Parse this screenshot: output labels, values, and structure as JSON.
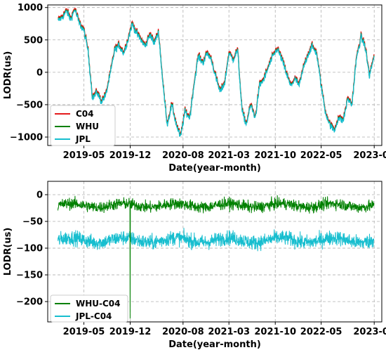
{
  "chart_data": [
    {
      "type": "line",
      "xlabel": "Date(year-month)",
      "ylabel": "LODR(us)",
      "xlim": [
        "2018-11-15",
        "2023-02-05"
      ],
      "ylim": [
        -1130,
        1040
      ],
      "grid": true,
      "legend_position": "bottom-left",
      "x_ticks": [
        "2019-05",
        "2019-12",
        "2020-08",
        "2021-03",
        "2021-10",
        "2022-05",
        "2023-01"
      ],
      "y_ticks": [
        -1000,
        -500,
        0,
        500,
        1000
      ],
      "series": [
        {
          "name": "C04",
          "color": "#e41a1c"
        },
        {
          "name": "WHU",
          "color": "#008000"
        },
        {
          "name": "JPL",
          "color": "#17becf"
        }
      ],
      "x": [
        "2019-01-01",
        "2019-01-20",
        "2019-02-10",
        "2019-03-01",
        "2019-03-20",
        "2019-04-10",
        "2019-05-01",
        "2019-05-20",
        "2019-06-10",
        "2019-07-01",
        "2019-07-20",
        "2019-08-10",
        "2019-09-01",
        "2019-09-20",
        "2019-10-10",
        "2019-11-01",
        "2019-11-20",
        "2019-12-10",
        "2020-01-01",
        "2020-01-20",
        "2020-02-10",
        "2020-03-01",
        "2020-03-20",
        "2020-04-10",
        "2020-05-01",
        "2020-05-20",
        "2020-06-10",
        "2020-07-01",
        "2020-07-20",
        "2020-08-10",
        "2020-09-01",
        "2020-09-20",
        "2020-10-10",
        "2020-11-01",
        "2020-11-20",
        "2020-12-10",
        "2021-01-01",
        "2021-01-20",
        "2021-02-10",
        "2021-03-01",
        "2021-03-20",
        "2021-04-10",
        "2021-05-01",
        "2021-05-20",
        "2021-06-10",
        "2021-07-01",
        "2021-07-20",
        "2021-08-10",
        "2021-09-01",
        "2021-09-20",
        "2021-10-10",
        "2021-11-01",
        "2021-11-20",
        "2021-12-10",
        "2022-01-01",
        "2022-01-20",
        "2022-02-10",
        "2022-03-01",
        "2022-03-20",
        "2022-04-10",
        "2022-05-01",
        "2022-05-20",
        "2022-06-10",
        "2022-07-01",
        "2022-07-20",
        "2022-08-10",
        "2022-09-01",
        "2022-09-20",
        "2022-10-10",
        "2022-11-01",
        "2022-11-20",
        "2022-12-10",
        "2022-12-31"
      ],
      "values": [
        800,
        850,
        950,
        820,
        980,
        760,
        650,
        350,
        -400,
        -300,
        -450,
        -350,
        0,
        350,
        420,
        300,
        500,
        750,
        600,
        500,
        400,
        600,
        450,
        620,
        -200,
        -800,
        -500,
        -800,
        -1000,
        -600,
        -700,
        -200,
        250,
        150,
        300,
        200,
        -100,
        -300,
        -150,
        300,
        200,
        350,
        -600,
        -800,
        -500,
        -700,
        -200,
        -100,
        100,
        250,
        370,
        200,
        0,
        -200,
        -100,
        -200,
        100,
        280,
        400,
        300,
        -200,
        -600,
        -800,
        -900,
        -700,
        -750,
        -400,
        -500,
        200,
        550,
        400,
        -50,
        250
      ]
    },
    {
      "type": "line",
      "xlabel": "Date(year-month)",
      "ylabel": "LODR(us)",
      "xlim": [
        "2018-11-15",
        "2023-02-05"
      ],
      "ylim": [
        -238,
        25
      ],
      "grid": true,
      "legend_position": "bottom-left",
      "x_ticks": [
        "2019-05",
        "2019-12",
        "2020-08",
        "2021-03",
        "2021-10",
        "2022-05",
        "2023-01"
      ],
      "y_ticks": [
        -200,
        -150,
        -100,
        -50,
        0
      ],
      "series": [
        {
          "name": "WHU-C04",
          "color": "#008000",
          "mean": -20,
          "spread": 14,
          "spike": {
            "x": "2019-12-01",
            "value": -232
          }
        },
        {
          "name": "JPL-C04",
          "color": "#17becf",
          "mean": -85,
          "spread": 18
        }
      ]
    }
  ]
}
